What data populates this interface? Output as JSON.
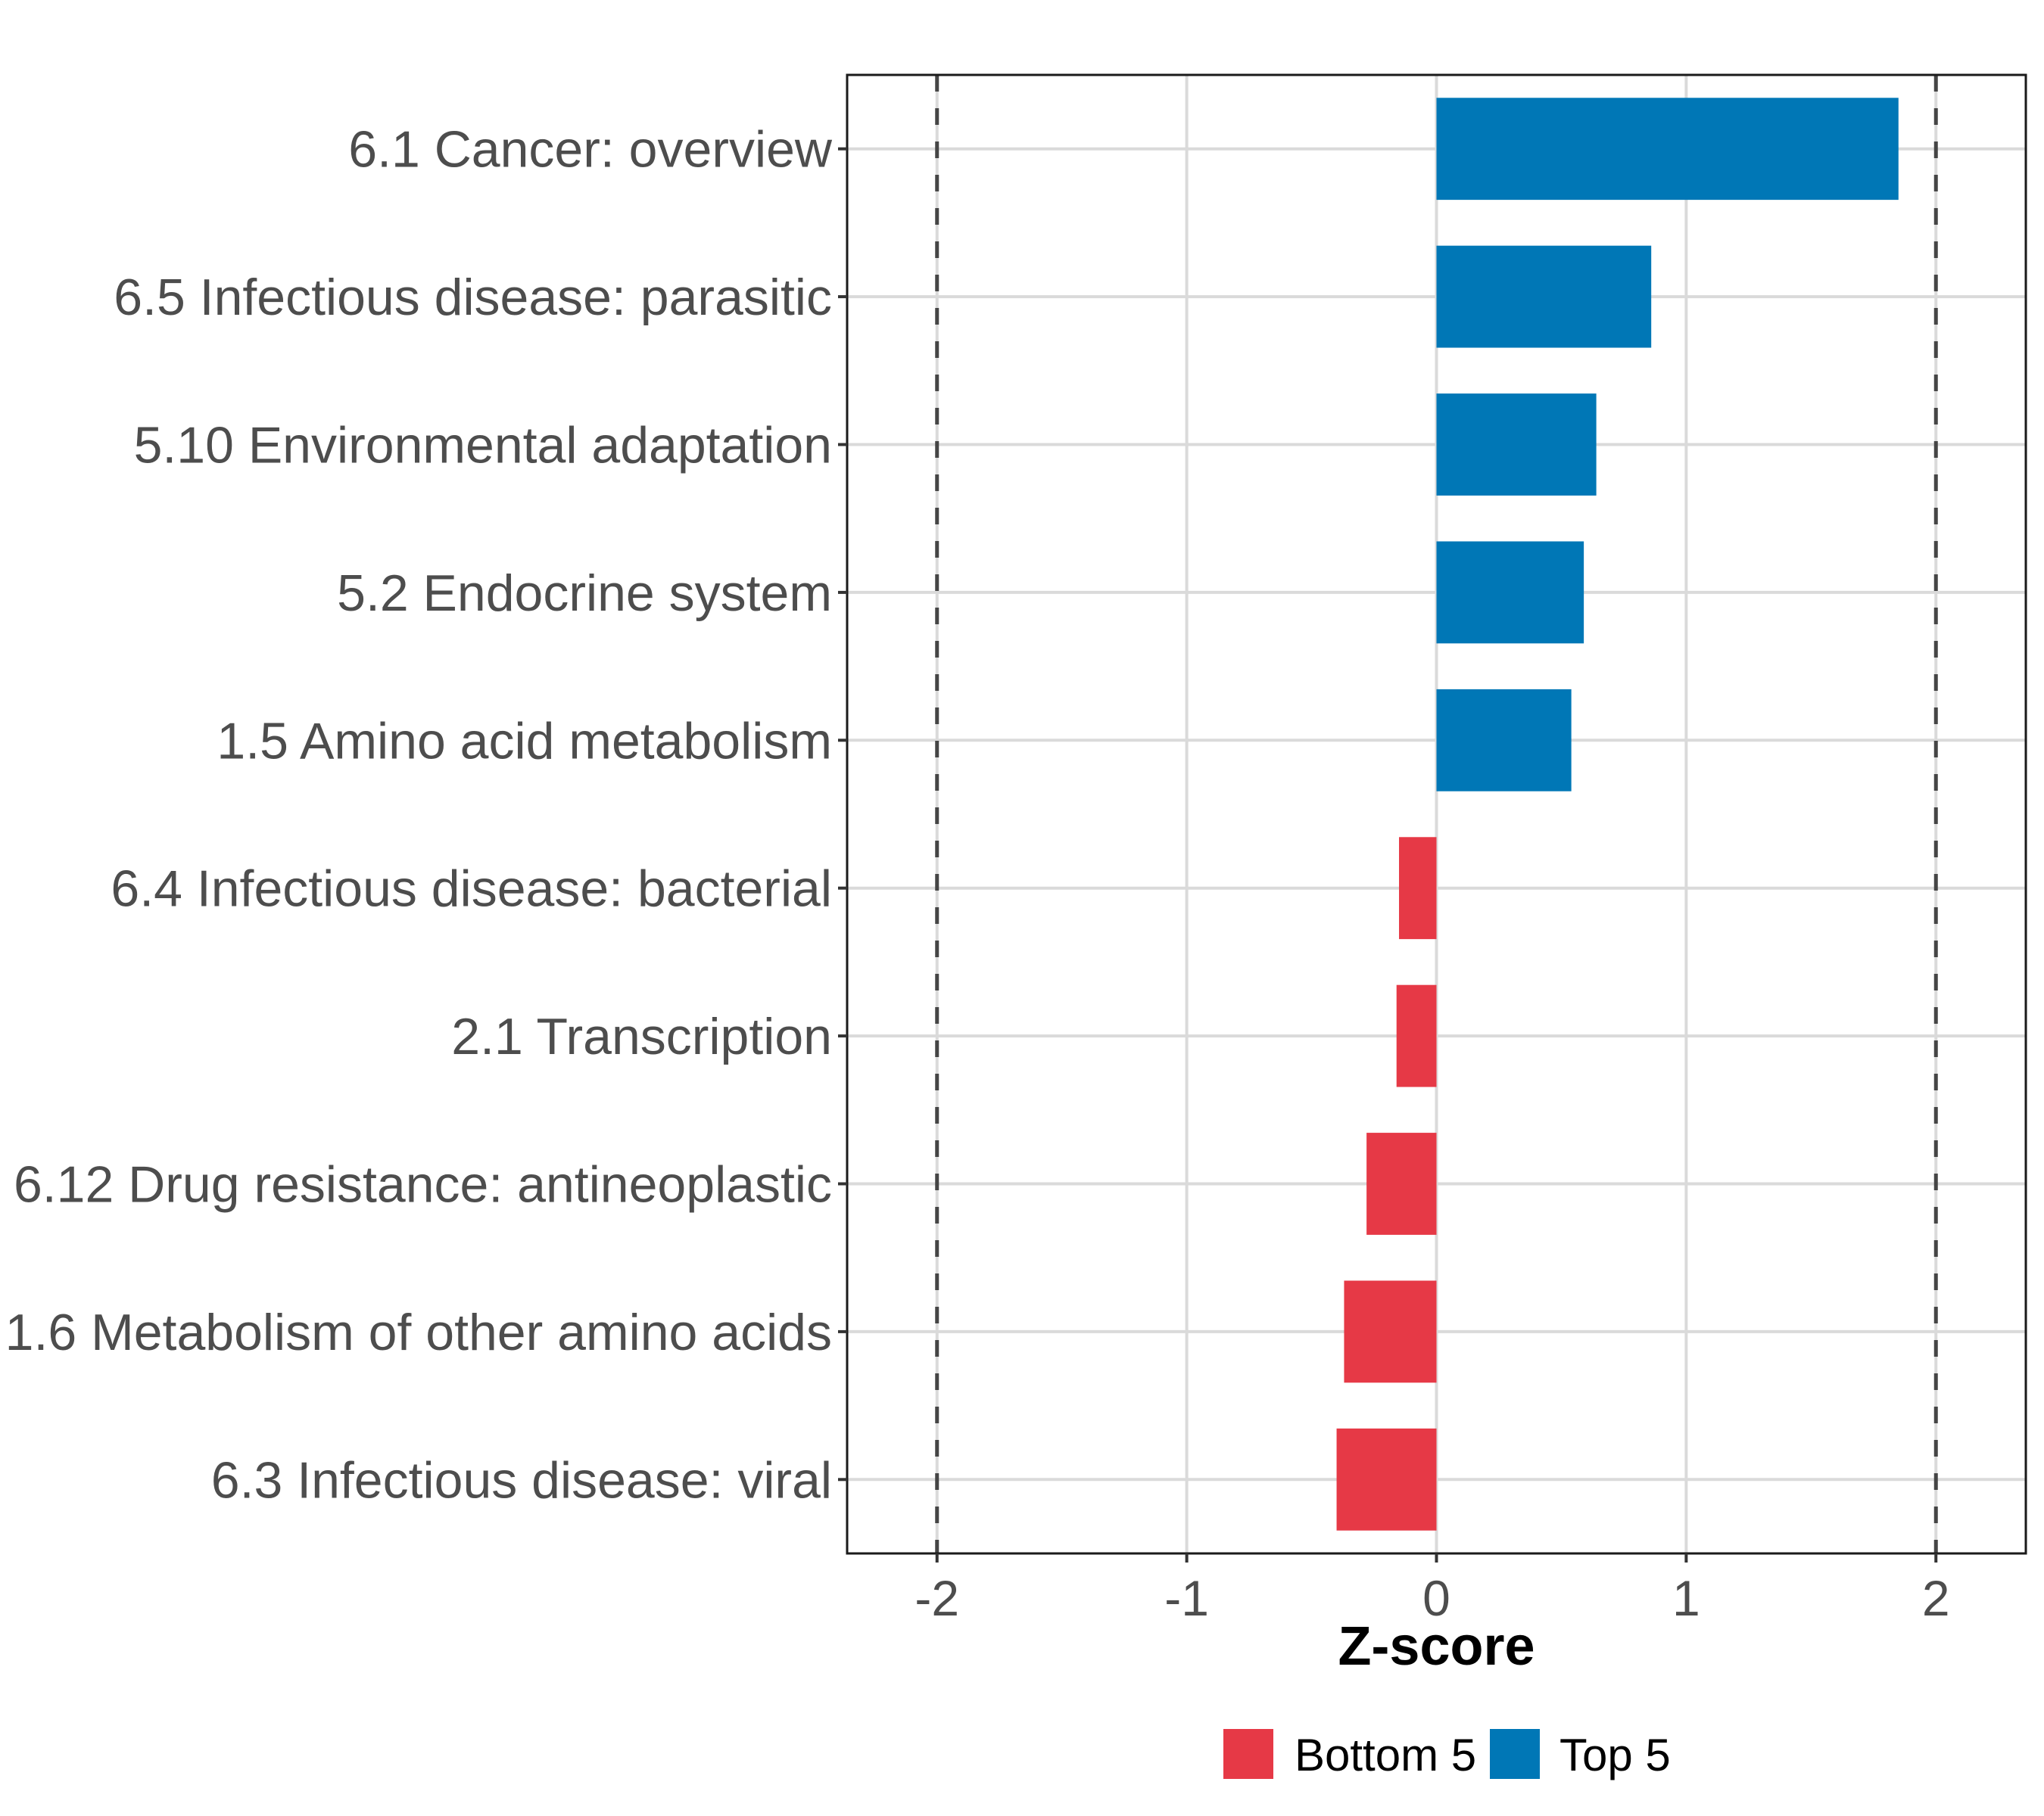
{
  "chart_data": {
    "type": "bar",
    "orientation": "horizontal",
    "title": "",
    "xlabel": "Z-score",
    "ylabel": "",
    "xlim": [
      -2.36,
      2.36
    ],
    "xticks": [
      -2,
      -1,
      0,
      1,
      2
    ],
    "xtick_labels": [
      "-2",
      "-1",
      "0",
      "1",
      "2"
    ],
    "reference_lines": [
      -2,
      2
    ],
    "grid": true,
    "legend_position": "bottom",
    "categories": [
      "6.1 Cancer: overview",
      "6.5 Infectious disease: parasitic",
      "5.10 Environmental adaptation",
      "5.2 Endocrine system",
      "1.5 Amino acid metabolism",
      "6.4 Infectious disease: bacterial",
      "2.1 Transcription",
      "6.12 Drug resistance: antineoplastic",
      "1.6 Metabolism of other amino acids",
      "6.3 Infectious disease: viral"
    ],
    "values": [
      1.85,
      0.86,
      0.64,
      0.59,
      0.54,
      -0.15,
      -0.16,
      -0.28,
      -0.37,
      -0.4
    ],
    "groups": [
      "Top 5",
      "Top 5",
      "Top 5",
      "Top 5",
      "Top 5",
      "Bottom 5",
      "Bottom 5",
      "Bottom 5",
      "Bottom 5",
      "Bottom 5"
    ],
    "legend": [
      {
        "name": "Bottom 5",
        "color": "#E63946"
      },
      {
        "name": "Top 5",
        "color": "#0077B6"
      }
    ]
  },
  "colors": {
    "Top 5": "#0077B6",
    "Bottom 5": "#E63946",
    "text": "#4D4D4D",
    "grid": "#DADADA",
    "refline": "#454545"
  }
}
